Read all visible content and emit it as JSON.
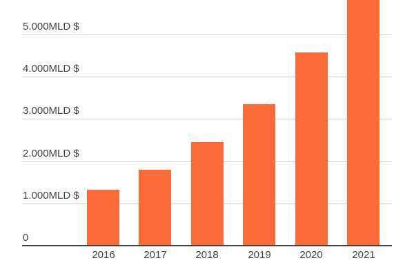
{
  "chart_data": {
    "type": "bar",
    "title": "",
    "xlabel": "",
    "ylabel": "",
    "categories": [
      "2016",
      "2017",
      "2018",
      "2019",
      "2020",
      "2021"
    ],
    "series": [
      {
        "name": "value",
        "values": [
          1320,
          1800,
          2450,
          3350,
          4580,
          5950
        ]
      }
    ],
    "y_ticks": [
      {
        "value": 0,
        "label": "0"
      },
      {
        "value": 1000,
        "label": "1.000MLD $"
      },
      {
        "value": 2000,
        "label": "2.000MLD $"
      },
      {
        "value": 3000,
        "label": "3.000MLD $"
      },
      {
        "value": 4000,
        "label": "4.000MLD $"
      },
      {
        "value": 5000,
        "label": "5.000MLD $"
      }
    ],
    "ylim": [
      0,
      5820
    ],
    "grid": true,
    "legend": "none",
    "unit": "MLD $"
  },
  "colors": {
    "bar": "#FB6B3A",
    "gridline": "#CCCCCC",
    "axis_line": "#424242",
    "tick_text": "#424242",
    "background": "#FFFFFF"
  }
}
